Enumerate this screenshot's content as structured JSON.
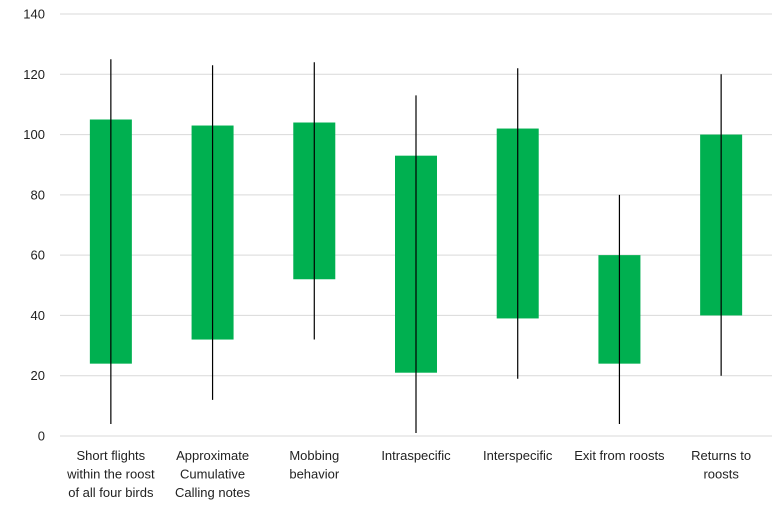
{
  "chart_data": {
    "type": "candlestick",
    "title": "",
    "xlabel": "",
    "ylabel": "",
    "ylim": [
      0,
      140
    ],
    "yticks": [
      0,
      20,
      40,
      60,
      80,
      100,
      120,
      140
    ],
    "grid": true,
    "legend": "none",
    "colors": {
      "box": "#00B050",
      "wick": "#000000",
      "grid": "#D9D9D9"
    },
    "categories": [
      [
        "Short flights",
        "within the roost",
        "of all four birds"
      ],
      [
        "Approximate",
        "Cumulative",
        "Calling notes"
      ],
      [
        "Mobbing",
        "behavior"
      ],
      [
        "Intraspecific"
      ],
      [
        "Interspecific"
      ],
      [
        "Exit from roosts"
      ],
      [
        "Returns to",
        "roosts"
      ]
    ],
    "points": [
      {
        "low": 4,
        "high": 125,
        "box_low": 24,
        "box_high": 105
      },
      {
        "low": 12,
        "high": 123,
        "box_low": 32,
        "box_high": 103
      },
      {
        "low": 32,
        "high": 124,
        "box_low": 52,
        "box_high": 104
      },
      {
        "low": 1,
        "high": 113,
        "box_low": 21,
        "box_high": 93
      },
      {
        "low": 19,
        "high": 122,
        "box_low": 39,
        "box_high": 102
      },
      {
        "low": 4,
        "high": 80,
        "box_low": 24,
        "box_high": 60
      },
      {
        "low": 20,
        "high": 120,
        "box_low": 40,
        "box_high": 100
      }
    ]
  }
}
